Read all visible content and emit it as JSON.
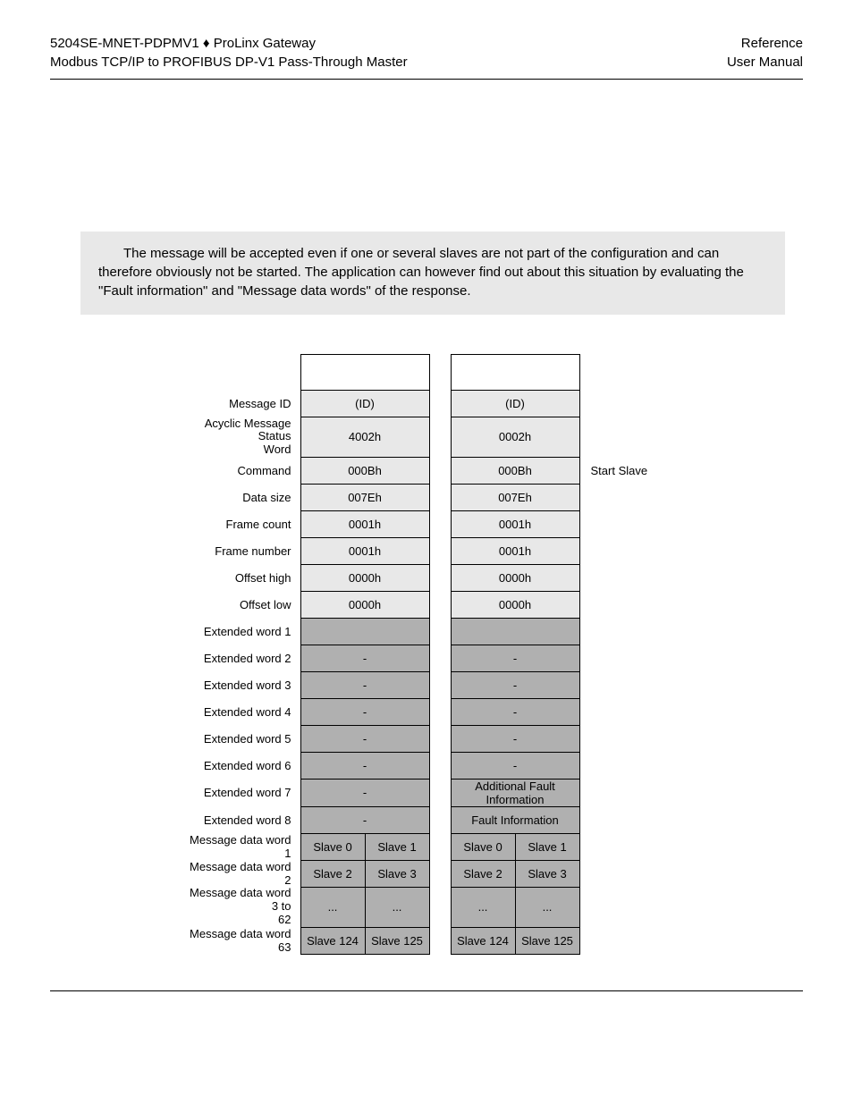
{
  "header": {
    "left_line1_part1": "5204SE-MNET-PDPMV1",
    "diamond": "♦",
    "left_line1_part2": "ProLinx Gateway",
    "left_line2": "Modbus TCP/IP to PROFIBUS DP-V1 Pass-Through Master",
    "right_line1": "Reference",
    "right_line2": "User Manual"
  },
  "note": "The message will be accepted even if one or several slaves are not part of the configuration and can therefore obviously not be started. The application can however find out about this situation by evaluating the \"Fault information\" and \"Message data words\" of the response.",
  "colors": {
    "light_bg": "#e8e8e8",
    "dark_bg": "#b0b0b0",
    "border": "#000000",
    "page_bg": "#ffffff"
  },
  "rows": [
    {
      "label": "",
      "type": "blank",
      "cmd": [
        "",
        ""
      ],
      "rsp": [
        "",
        ""
      ],
      "note": ""
    },
    {
      "label": "Message ID",
      "type": "light",
      "cmd": "(ID)",
      "rsp": "(ID)",
      "note": ""
    },
    {
      "label": "Acyclic Message Status Word",
      "type": "light",
      "cmd": "4002h",
      "rsp": "0002h",
      "note": "",
      "twoline": true
    },
    {
      "label": "Command",
      "type": "light",
      "cmd": "000Bh",
      "rsp": "000Bh",
      "note": "Start Slave"
    },
    {
      "label": "Data size",
      "type": "light",
      "cmd": "007Eh",
      "rsp": "007Eh",
      "note": ""
    },
    {
      "label": "Frame count",
      "type": "light",
      "cmd": "0001h",
      "rsp": "0001h",
      "note": ""
    },
    {
      "label": "Frame number",
      "type": "light",
      "cmd": "0001h",
      "rsp": "0001h",
      "note": ""
    },
    {
      "label": "Offset high",
      "type": "light",
      "cmd": "0000h",
      "rsp": "0000h",
      "note": ""
    },
    {
      "label": "Offset low",
      "type": "light",
      "cmd": "0000h",
      "rsp": "0000h",
      "note": ""
    },
    {
      "label": "Extended word 1",
      "type": "dark",
      "cmd": "",
      "rsp": "",
      "note": ""
    },
    {
      "label": "Extended word 2",
      "type": "dark",
      "cmd": "-",
      "rsp": "-",
      "note": ""
    },
    {
      "label": "Extended word 3",
      "type": "dark",
      "cmd": "-",
      "rsp": "-",
      "note": ""
    },
    {
      "label": "Extended word 4",
      "type": "dark",
      "cmd": "-",
      "rsp": "-",
      "note": ""
    },
    {
      "label": "Extended word 5",
      "type": "dark",
      "cmd": "-",
      "rsp": "-",
      "note": ""
    },
    {
      "label": "Extended word 6",
      "type": "dark",
      "cmd": "-",
      "rsp": "-",
      "note": ""
    },
    {
      "label": "Extended word 7",
      "type": "dark",
      "cmd": "-",
      "rsp": "Additional Fault Information",
      "note": ""
    },
    {
      "label": "Extended word 8",
      "type": "dark",
      "cmd": "-",
      "rsp": "Fault Information",
      "note": ""
    },
    {
      "label": "Message data word 1",
      "type": "split",
      "cmd": [
        "Slave 0",
        "Slave 1"
      ],
      "rsp": [
        "Slave 0",
        "Slave 1"
      ],
      "note": ""
    },
    {
      "label": "Message data word 2",
      "type": "split",
      "cmd": [
        "Slave 2",
        "Slave 3"
      ],
      "rsp": [
        "Slave 2",
        "Slave 3"
      ],
      "note": ""
    },
    {
      "label": "Message data word 3 to 62",
      "type": "split",
      "cmd": [
        "...",
        "..."
      ],
      "rsp": [
        "...",
        "..."
      ],
      "note": "",
      "twoline": true
    },
    {
      "label": "Message data word 63",
      "type": "split",
      "cmd": [
        "Slave 124",
        "Slave 125"
      ],
      "rsp": [
        "Slave 124",
        "Slave 125"
      ],
      "note": ""
    }
  ]
}
